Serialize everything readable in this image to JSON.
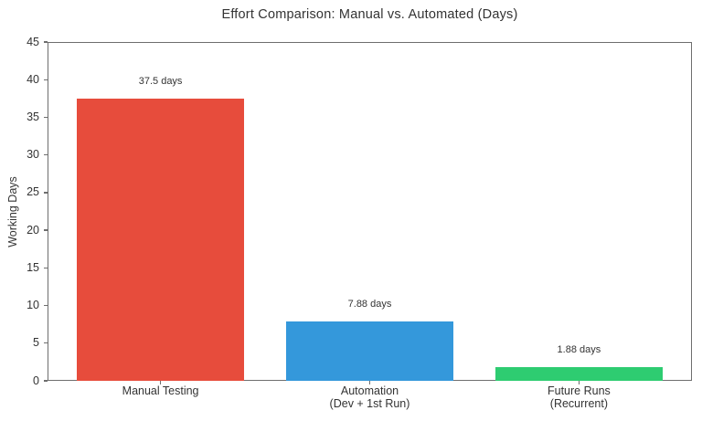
{
  "chart_data": {
    "type": "bar",
    "title": "Effort Comparison: Manual vs. Automated (Days)",
    "xlabel": "",
    "ylabel": "Working Days",
    "categories": [
      "Manual Testing",
      "Automation\n(Dev + 1st Run)",
      "Future Runs\n(Recurrent)"
    ],
    "values": [
      37.5,
      7.88,
      1.88
    ],
    "bar_value_labels": [
      "37.5 days",
      "7.88 days",
      "1.88 days"
    ],
    "bar_colors": [
      "#e74c3c",
      "#3498db",
      "#2ecc71"
    ],
    "ylim": [
      0,
      45
    ],
    "yticks": [
      0,
      5,
      10,
      15,
      20,
      25,
      30,
      35,
      40,
      45
    ],
    "grid": false,
    "legend": null,
    "spine_color": "#6e6e6e",
    "background_color": "#ffffff"
  }
}
